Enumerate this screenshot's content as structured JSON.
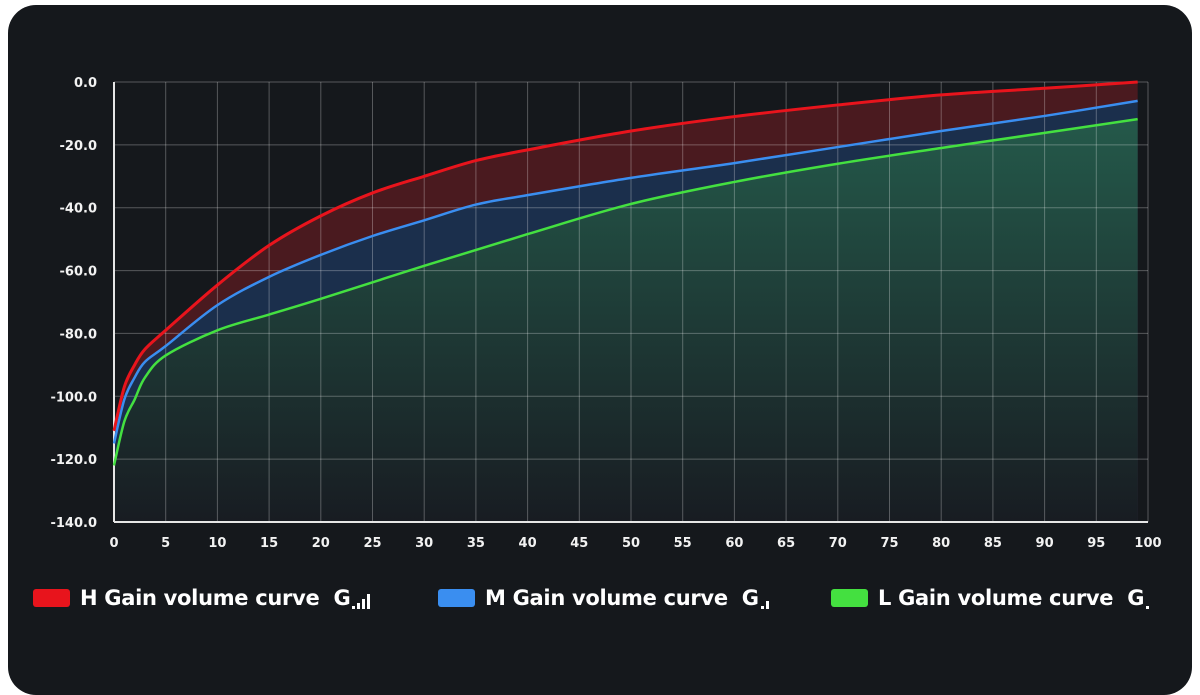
{
  "chart_data": {
    "type": "area",
    "title": "",
    "xlabel": "",
    "ylabel": "",
    "xlim": [
      0,
      100
    ],
    "ylim": [
      -140,
      0
    ],
    "grid": true,
    "legend_placement": "bottom",
    "x_ticks": [
      "0",
      "5",
      "10",
      "15",
      "20",
      "25",
      "30",
      "35",
      "40",
      "45",
      "50",
      "55",
      "60",
      "65",
      "70",
      "75",
      "80",
      "85",
      "90",
      "95",
      "100"
    ],
    "y_ticks": [
      "0.0",
      "-20.0",
      "-40.0",
      "-60.0",
      "-80.0",
      "-100.0",
      "-120.0",
      "-140.0"
    ],
    "series": [
      {
        "name": "H Gain volume curve",
        "color": "#e8141c",
        "fill": "#4a1a1f",
        "icon": "signal-bars-high-icon",
        "x": [
          0,
          1,
          2,
          3,
          5,
          10,
          15,
          20,
          25,
          30,
          35,
          40,
          50,
          60,
          70,
          80,
          90,
          99
        ],
        "y": [
          -111,
          -97,
          -90,
          -85,
          -79,
          -64.6,
          -52,
          -42.6,
          -35.3,
          -30,
          -25,
          -21.6,
          -15.6,
          -11,
          -7.3,
          -4.1,
          -2,
          0
        ]
      },
      {
        "name": "M Gain volume curve",
        "color": "#3a8ef0",
        "fill": "#1b2f4c",
        "icon": "signal-bars-medium-icon",
        "x": [
          0,
          1,
          2,
          3,
          5,
          10,
          15,
          20,
          25,
          30,
          35,
          40,
          50,
          60,
          70,
          80,
          90,
          99
        ],
        "y": [
          -115,
          -101,
          -94,
          -89,
          -84,
          -71,
          -62,
          -55,
          -49,
          -44,
          -39,
          -36,
          -30.5,
          -25.8,
          -20.7,
          -15.6,
          -10.8,
          -6
        ]
      },
      {
        "name": "L Gain volume curve",
        "color": "#44e040",
        "fill": "#24594a",
        "icon": "signal-bars-low-icon",
        "x": [
          0,
          1,
          2,
          3,
          5,
          10,
          15,
          20,
          30,
          40,
          50,
          60,
          70,
          80,
          90,
          99
        ],
        "y": [
          -122,
          -108,
          -101,
          -94,
          -87,
          -79,
          -74,
          -69,
          -58.5,
          -48.4,
          -38.8,
          -31.8,
          -26,
          -21,
          -16.2,
          -11.8
        ]
      }
    ]
  },
  "legend_glyph_letter": "G"
}
